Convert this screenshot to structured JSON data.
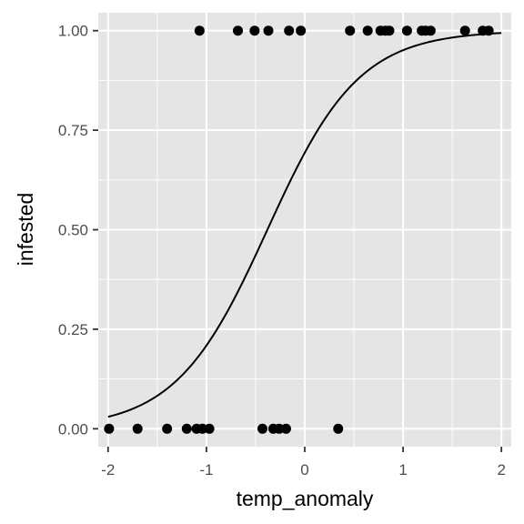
{
  "chart_data": {
    "type": "scatter",
    "xlabel": "temp_anomaly",
    "ylabel": "infested",
    "xlim": [
      -2.1,
      2.1
    ],
    "ylim": [
      -0.045,
      1.045
    ],
    "x_ticks": [
      -2,
      -1,
      0,
      1,
      2
    ],
    "x_tick_labels": [
      "-2",
      "-1",
      "0",
      "1",
      "2"
    ],
    "y_ticks": [
      0,
      0.25,
      0.5,
      0.75,
      1
    ],
    "y_tick_labels": [
      "0.00",
      "0.25",
      "0.50",
      "0.75",
      "1.00"
    ],
    "grid": true,
    "background": "#e5e5e5",
    "grid_color": "#ffffff",
    "point_color": "#000000",
    "line_color": "#000000",
    "points": {
      "x": [
        -1.07,
        -0.68,
        -0.51,
        -0.37,
        -0.16,
        -0.04,
        0.46,
        0.64,
        0.77,
        0.82,
        0.86,
        1.04,
        1.19,
        1.23,
        1.28,
        1.63,
        1.81,
        1.87,
        -1.99,
        -1.7,
        -1.4,
        -1.2,
        -1.1,
        -1.04,
        -0.97,
        -0.43,
        -0.32,
        -0.26,
        -0.19,
        0.34
      ],
      "y": [
        1,
        1,
        1,
        1,
        1,
        1,
        1,
        1,
        1,
        1,
        1,
        1,
        1,
        1,
        1,
        1,
        1,
        1,
        0,
        0,
        0,
        0,
        0,
        0,
        0,
        0,
        0,
        0,
        0,
        0
      ]
    },
    "fit": {
      "type": "logistic",
      "x": [
        -2.0,
        -1.5,
        -1.0,
        -0.75,
        -0.5,
        -0.38,
        -0.25,
        0.0,
        0.25,
        0.5,
        0.75,
        1.0,
        1.5,
        2.0
      ],
      "y": [
        0.03,
        0.08,
        0.205,
        0.307,
        0.436,
        0.5,
        0.571,
        0.694,
        0.794,
        0.869,
        0.919,
        0.951,
        0.983,
        0.994
      ]
    }
  }
}
